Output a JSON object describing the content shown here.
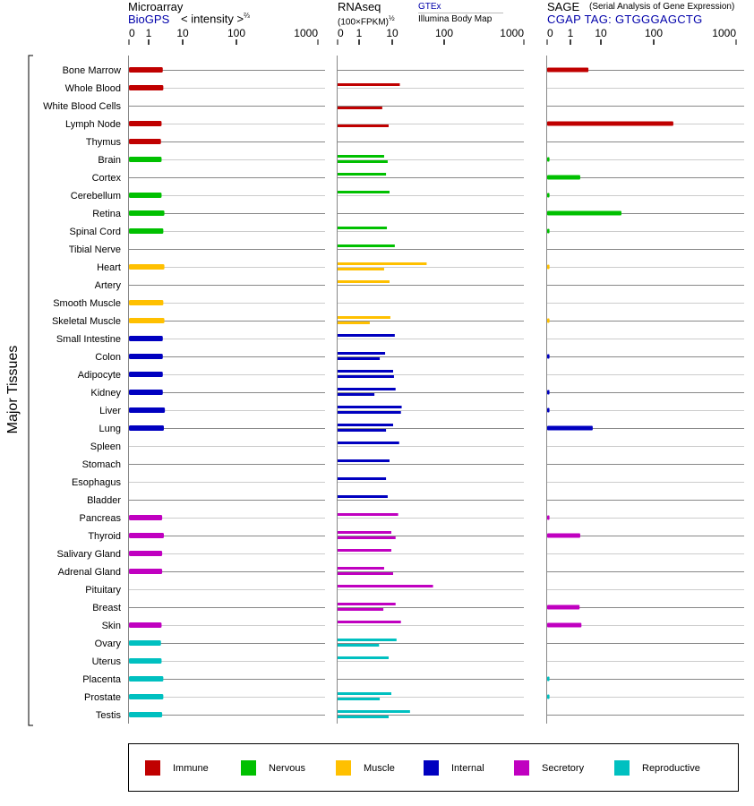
{
  "headers": {
    "microarray": {
      "title": "Microarray",
      "source": "BioGPS",
      "unit": "< intensity >",
      "unit_exp": "⅔"
    },
    "rnaseq": {
      "title": "RNAseq",
      "unit": "(100×FPKM)",
      "unit_exp": "½",
      "source_top": "GTEx",
      "source_bottom": "Illumina Body Map"
    },
    "sage": {
      "title": "SAGE",
      "subtitle": "(Serial Analysis of Gene Expression)",
      "tag": "CGAP TAG: GTGGGAGCTG"
    }
  },
  "chart_data": {
    "type": "bar",
    "ylabel": "Major Tissues",
    "tick_labels": [
      "0",
      "1",
      "10",
      "100",
      "1000"
    ],
    "ticks": [
      0,
      1,
      10,
      100,
      1000
    ],
    "xlim": [
      0,
      1000
    ],
    "grid": true,
    "legend_placement": "bottom",
    "groups": [
      {
        "name": "Immune",
        "color": "#c00000"
      },
      {
        "name": "Nervous",
        "color": "#00c000"
      },
      {
        "name": "Muscle",
        "color": "#ffc000"
      },
      {
        "name": "Internal",
        "color": "#0000c0"
      },
      {
        "name": "Secretory",
        "color": "#c000c0"
      },
      {
        "name": "Reproductive",
        "color": "#00c0c0"
      }
    ],
    "series": [
      "microarray",
      "gtex",
      "illumina",
      "sage"
    ],
    "tissues": [
      {
        "name": "Bone Marrow",
        "group": 0,
        "microarray": 2.6,
        "gtex": null,
        "illumina": null,
        "sage": 3.9
      },
      {
        "name": "Whole Blood",
        "group": 0,
        "microarray": 2.7,
        "gtex": 14,
        "illumina": null,
        "sage": null
      },
      {
        "name": "White Blood Cells",
        "group": 0,
        "microarray": null,
        "gtex": null,
        "illumina": 5,
        "sage": null
      },
      {
        "name": "Lymph Node",
        "group": 0,
        "microarray": 2.4,
        "gtex": null,
        "illumina": 7.8,
        "sage": 173
      },
      {
        "name": "Thymus",
        "group": 0,
        "microarray": 2.3,
        "gtex": null,
        "illumina": null,
        "sage": null
      },
      {
        "name": "Brain",
        "group": 1,
        "microarray": 2.4,
        "gtex": 5.7,
        "illumina": 7.3,
        "sage": 0.1
      },
      {
        "name": "Cortex",
        "group": 1,
        "microarray": null,
        "gtex": 6.5,
        "illumina": null,
        "sage": 2.1
      },
      {
        "name": "Cerebellum",
        "group": 1,
        "microarray": 2.4,
        "gtex": 8.3,
        "illumina": null,
        "sage": 0.1
      },
      {
        "name": "Retina",
        "group": 1,
        "microarray": 2.9,
        "gtex": null,
        "illumina": null,
        "sage": 24.5
      },
      {
        "name": "Spinal Cord",
        "group": 1,
        "microarray": 2.7,
        "gtex": 6.9,
        "illumina": null,
        "sage": 0.1
      },
      {
        "name": "Tibial Nerve",
        "group": 1,
        "microarray": null,
        "gtex": 11.2,
        "illumina": null,
        "sage": null
      },
      {
        "name": "Heart",
        "group": 2,
        "microarray": 2.9,
        "gtex": 46,
        "illumina": 5.7,
        "sage": 0.1
      },
      {
        "name": "Artery",
        "group": 2,
        "microarray": null,
        "gtex": 8.3,
        "illumina": null,
        "sage": null
      },
      {
        "name": "Smooth Muscle",
        "group": 2,
        "microarray": 2.7,
        "gtex": null,
        "illumina": null,
        "sage": null
      },
      {
        "name": "Skeletal Muscle",
        "group": 2,
        "microarray": 2.9,
        "gtex": 8.8,
        "illumina": 2.1,
        "sage": 0.1
      },
      {
        "name": "Small Intestine",
        "group": 3,
        "microarray": 2.6,
        "gtex": 11.2,
        "illumina": null,
        "sage": null
      },
      {
        "name": "Colon",
        "group": 3,
        "microarray": 2.6,
        "gtex": 6.1,
        "illumina": 4.2,
        "sage": 0.1
      },
      {
        "name": "Adipocyte",
        "group": 3,
        "microarray": 2.6,
        "gtex": 10.4,
        "illumina": 10.8,
        "sage": null
      },
      {
        "name": "Kidney",
        "group": 3,
        "microarray": 2.6,
        "gtex": 11.6,
        "illumina": 2.9,
        "sage": 0.1
      },
      {
        "name": "Liver",
        "group": 3,
        "microarray": 3.0,
        "gtex": 15.2,
        "illumina": 14.7,
        "sage": 0.1
      },
      {
        "name": "Lung",
        "group": 3,
        "microarray": 2.8,
        "gtex": 10.4,
        "illumina": 6.5,
        "sage": 5.4
      },
      {
        "name": "Spleen",
        "group": 3,
        "microarray": null,
        "gtex": 13.6,
        "illumina": null,
        "sage": null
      },
      {
        "name": "Stomach",
        "group": 3,
        "microarray": null,
        "gtex": 8.3,
        "illumina": null,
        "sage": null
      },
      {
        "name": "Esophagus",
        "group": 3,
        "microarray": null,
        "gtex": 6.5,
        "illumina": null,
        "sage": null
      },
      {
        "name": "Bladder",
        "group": 3,
        "microarray": null,
        "gtex": 7.3,
        "illumina": null,
        "sage": null
      },
      {
        "name": "Pancreas",
        "group": 4,
        "microarray": 2.5,
        "gtex": 13,
        "illumina": null,
        "sage": 0.1
      },
      {
        "name": "Thyroid",
        "group": 4,
        "microarray": 2.8,
        "gtex": 9.4,
        "illumina": 11.6,
        "sage": 2.1
      },
      {
        "name": "Salivary Gland",
        "group": 4,
        "microarray": 2.5,
        "gtex": 9.4,
        "illumina": null,
        "sage": null
      },
      {
        "name": "Adrenal Gland",
        "group": 4,
        "microarray": 2.5,
        "gtex": 5.7,
        "illumina": 10.4,
        "sage": null
      },
      {
        "name": "Pituitary",
        "group": 4,
        "microarray": null,
        "gtex": 61,
        "illumina": null,
        "sage": null
      },
      {
        "name": "Breast",
        "group": 4,
        "microarray": null,
        "gtex": 11.6,
        "illumina": 5.4,
        "sage": 2.0
      },
      {
        "name": "Skin",
        "group": 4,
        "microarray": 2.4,
        "gtex": 14.7,
        "illumina": null,
        "sage": 2.3
      },
      {
        "name": "Ovary",
        "group": 5,
        "microarray": 2.3,
        "gtex": 12.1,
        "illumina": 4.0,
        "sage": null
      },
      {
        "name": "Uterus",
        "group": 5,
        "microarray": 2.4,
        "gtex": 7.8,
        "illumina": null,
        "sage": null
      },
      {
        "name": "Placenta",
        "group": 5,
        "microarray": 2.7,
        "gtex": null,
        "illumina": null,
        "sage": 0.1
      },
      {
        "name": "Prostate",
        "group": 5,
        "microarray": 2.7,
        "gtex": 9.4,
        "illumina": 4.2,
        "sage": 0.1
      },
      {
        "name": "Testis",
        "group": 5,
        "microarray": 2.5,
        "gtex": 22,
        "illumina": 7.8,
        "sage": null
      }
    ]
  }
}
